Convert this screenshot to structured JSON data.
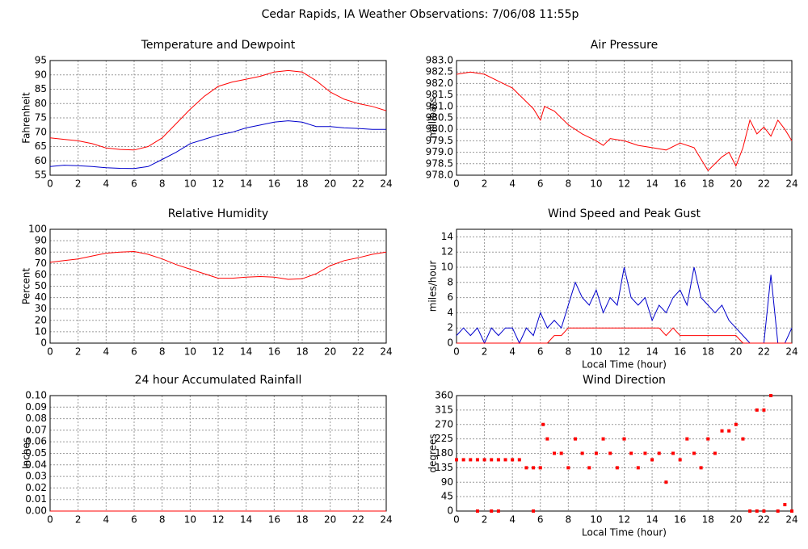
{
  "title": "Cedar Rapids, IA Weather Observations: 7/06/08 11:55p",
  "chart_data": [
    {
      "type": "line",
      "title": "Temperature and Dewpoint",
      "ylabel": "Fahrenheit",
      "x": [
        0,
        1,
        2,
        3,
        4,
        5,
        6,
        7,
        8,
        9,
        10,
        11,
        12,
        13,
        14,
        15,
        16,
        17,
        18,
        19,
        20,
        21,
        22,
        23,
        24
      ],
      "series": [
        {
          "name": "Temperature",
          "color": "#ff0000",
          "values": [
            68,
            67.5,
            67,
            66,
            64.5,
            64,
            63.8,
            65,
            68,
            73,
            78,
            82.5,
            86,
            87.5,
            88.5,
            89.5,
            91,
            91.5,
            91,
            88,
            84,
            81.5,
            80,
            79,
            77.5
          ]
        },
        {
          "name": "Dewpoint",
          "color": "#0000cc",
          "values": [
            58,
            58.5,
            58.3,
            58,
            57.6,
            57.4,
            57.3,
            58,
            60.5,
            63,
            66,
            67.5,
            69,
            70,
            71.5,
            72.5,
            73.5,
            74,
            73.5,
            72,
            72,
            71.5,
            71.3,
            71,
            71
          ]
        }
      ],
      "xlim": [
        0,
        24
      ],
      "xticks": [
        0,
        2,
        4,
        6,
        8,
        10,
        12,
        14,
        16,
        18,
        20,
        22,
        24
      ],
      "ylim": [
        55,
        95
      ],
      "yticks": [
        55,
        60,
        65,
        70,
        75,
        80,
        85,
        90,
        95
      ],
      "grid": true
    },
    {
      "type": "line",
      "title": "Air Pressure",
      "ylabel": "millibars",
      "x": [
        0,
        1,
        2,
        3,
        4,
        5,
        5.5,
        6,
        6.3,
        7,
        8,
        9,
        10,
        10.5,
        11,
        12,
        13,
        14,
        15,
        16,
        17,
        17.5,
        18,
        19,
        19.5,
        20,
        20.5,
        21,
        21.5,
        22,
        22.5,
        23,
        23.5,
        24
      ],
      "series": [
        {
          "name": "Air Pressure",
          "color": "#ff0000",
          "values": [
            982.4,
            982.5,
            982.4,
            982.1,
            981.8,
            981.2,
            980.9,
            980.4,
            981.0,
            980.8,
            980.2,
            979.8,
            979.5,
            979.3,
            979.6,
            979.5,
            979.3,
            979.2,
            979.1,
            979.4,
            979.2,
            978.7,
            978.2,
            978.8,
            979.0,
            978.4,
            979.2,
            980.4,
            979.8,
            980.1,
            979.7,
            980.4,
            980.0,
            979.5
          ]
        }
      ],
      "xlim": [
        0,
        24
      ],
      "xticks": [
        0,
        2,
        4,
        6,
        8,
        10,
        12,
        14,
        16,
        18,
        20,
        22,
        24
      ],
      "ylim": [
        978,
        983
      ],
      "yticks": [
        {
          "value": 978,
          "label": "978.0"
        },
        {
          "value": 978.5,
          "label": "978.5"
        },
        {
          "value": 979,
          "label": "979.0"
        },
        {
          "value": 979.5,
          "label": "979.5"
        },
        {
          "value": 980,
          "label": "980.0"
        },
        {
          "value": 980.5,
          "label": "980.5"
        },
        {
          "value": 981,
          "label": "981.0"
        },
        {
          "value": 981.5,
          "label": "981.5"
        },
        {
          "value": 982,
          "label": "982.0"
        },
        {
          "value": 982.5,
          "label": "982.5"
        },
        {
          "value": 983,
          "label": "983.0"
        }
      ],
      "grid": true
    },
    {
      "type": "line",
      "title": "Relative Humidity",
      "ylabel": "Percent",
      "x": [
        0,
        1,
        2,
        3,
        4,
        5,
        6,
        7,
        8,
        9,
        10,
        11,
        12,
        13,
        14,
        15,
        16,
        17,
        18,
        19,
        20,
        21,
        22,
        23,
        24
      ],
      "series": [
        {
          "name": "Relative Humidity",
          "color": "#ff0000",
          "values": [
            71,
            72.5,
            74,
            76.5,
            79,
            80,
            80.5,
            78,
            74,
            69,
            65,
            61,
            57,
            57,
            58,
            58.5,
            58,
            56,
            56.5,
            61,
            68,
            72.5,
            75,
            78,
            80
          ]
        }
      ],
      "xlim": [
        0,
        24
      ],
      "xticks": [
        0,
        2,
        4,
        6,
        8,
        10,
        12,
        14,
        16,
        18,
        20,
        22,
        24
      ],
      "ylim": [
        0,
        100
      ],
      "yticks": [
        0,
        10,
        20,
        30,
        40,
        50,
        60,
        70,
        80,
        90,
        100
      ],
      "grid": true
    },
    {
      "type": "line",
      "title": "Wind Speed and Peak Gust",
      "ylabel": "miles/hour",
      "xlabel": "Local Time (hour)",
      "x": [
        0,
        0.5,
        1,
        1.5,
        2,
        2.5,
        3,
        3.5,
        4,
        4.5,
        5,
        5.5,
        6,
        6.5,
        7,
        7.5,
        8,
        8.5,
        9,
        9.5,
        10,
        10.5,
        11,
        11.5,
        12,
        12.5,
        13,
        13.5,
        14,
        14.5,
        15,
        15.5,
        16,
        16.5,
        17,
        17.5,
        18,
        18.5,
        19,
        19.5,
        20,
        20.5,
        21,
        21.5,
        22,
        22.5,
        23,
        23.5,
        24
      ],
      "series": [
        {
          "name": "Wind Speed",
          "color": "#0000cc",
          "values": [
            1,
            2,
            1,
            2,
            0,
            2,
            1,
            2,
            2,
            0,
            2,
            1,
            4,
            2,
            3,
            2,
            5,
            8,
            6,
            5,
            7,
            4,
            6,
            5,
            10,
            6,
            5,
            6,
            3,
            5,
            4,
            6,
            7,
            5,
            10,
            6,
            5,
            4,
            5,
            3,
            2,
            1,
            0,
            0,
            0,
            9,
            0,
            0,
            2
          ]
        },
        {
          "name": "Peak Gust",
          "color": "#ff0000",
          "values": [
            0,
            0,
            0,
            0,
            0,
            0,
            0,
            0,
            0,
            0,
            0,
            0,
            0,
            0,
            1,
            1,
            2,
            2,
            2,
            2,
            2,
            2,
            2,
            2,
            2,
            2,
            2,
            2,
            2,
            2,
            1,
            2,
            1,
            1,
            1,
            1,
            1,
            1,
            1,
            1,
            1,
            0,
            0,
            0,
            0,
            0,
            0,
            0,
            0
          ]
        }
      ],
      "xlim": [
        0,
        24
      ],
      "xticks": [
        0,
        2,
        4,
        6,
        8,
        10,
        12,
        14,
        16,
        18,
        20,
        22,
        24
      ],
      "ylim": [
        0,
        15
      ],
      "yticks": [
        0,
        2,
        4,
        6,
        8,
        10,
        12,
        14
      ],
      "grid": true
    },
    {
      "type": "line",
      "title": "24 hour Accumulated Rainfall",
      "ylabel": "Inches",
      "x": [
        0,
        24
      ],
      "series": [
        {
          "name": "Rainfall",
          "color": "#ff0000",
          "values": [
            0,
            0
          ]
        }
      ],
      "xlim": [
        0,
        24
      ],
      "xticks": [
        0,
        2,
        4,
        6,
        8,
        10,
        12,
        14,
        16,
        18,
        20,
        22,
        24
      ],
      "ylim": [
        0,
        0.1
      ],
      "yticks": [
        {
          "value": 0,
          "label": "0.00"
        },
        {
          "value": 0.01,
          "label": "0.01"
        },
        {
          "value": 0.02,
          "label": "0.02"
        },
        {
          "value": 0.03,
          "label": "0.03"
        },
        {
          "value": 0.04,
          "label": "0.04"
        },
        {
          "value": 0.05,
          "label": "0.05"
        },
        {
          "value": 0.06,
          "label": "0.06"
        },
        {
          "value": 0.07,
          "label": "0.07"
        },
        {
          "value": 0.08,
          "label": "0.08"
        },
        {
          "value": 0.09,
          "label": "0.09"
        },
        {
          "value": 0.1,
          "label": "0.10"
        }
      ],
      "grid": true
    },
    {
      "type": "scatter",
      "title": "Wind Direction",
      "ylabel": "degrees",
      "xlabel": "Local Time (hour)",
      "x": [
        0,
        0.5,
        1,
        1.5,
        2,
        2.5,
        3,
        3.5,
        4,
        4.5,
        1.5,
        2.5,
        3,
        5,
        5.5,
        6,
        5.5,
        6.2,
        6.5,
        7,
        7.5,
        8,
        8.5,
        9,
        9.5,
        10,
        10.5,
        11,
        11.5,
        12,
        12.5,
        13,
        13.5,
        14,
        14.5,
        15,
        15.5,
        16,
        16.5,
        17,
        17.5,
        18,
        18.5,
        19,
        19.5,
        20,
        20.5,
        21,
        21.5,
        22,
        22.5,
        23,
        23.5,
        24,
        21.5,
        22
      ],
      "series": [
        {
          "name": "Wind Direction",
          "color": "#ff0000",
          "values": [
            160,
            160,
            160,
            160,
            160,
            160,
            160,
            160,
            160,
            160,
            0,
            0,
            0,
            135,
            135,
            135,
            0,
            270,
            225,
            180,
            180,
            135,
            225,
            180,
            135,
            180,
            225,
            180,
            135,
            225,
            180,
            135,
            180,
            160,
            180,
            90,
            180,
            160,
            225,
            180,
            135,
            225,
            180,
            250,
            250,
            270,
            225,
            0,
            0,
            0,
            360,
            0,
            20,
            0,
            315,
            315
          ]
        }
      ],
      "xlim": [
        0,
        24
      ],
      "xticks": [
        0,
        2,
        4,
        6,
        8,
        10,
        12,
        14,
        16,
        18,
        20,
        22,
        24
      ],
      "ylim": [
        0,
        360
      ],
      "yticks": [
        0,
        45,
        90,
        135,
        180,
        225,
        270,
        315,
        360
      ],
      "grid": true
    }
  ]
}
